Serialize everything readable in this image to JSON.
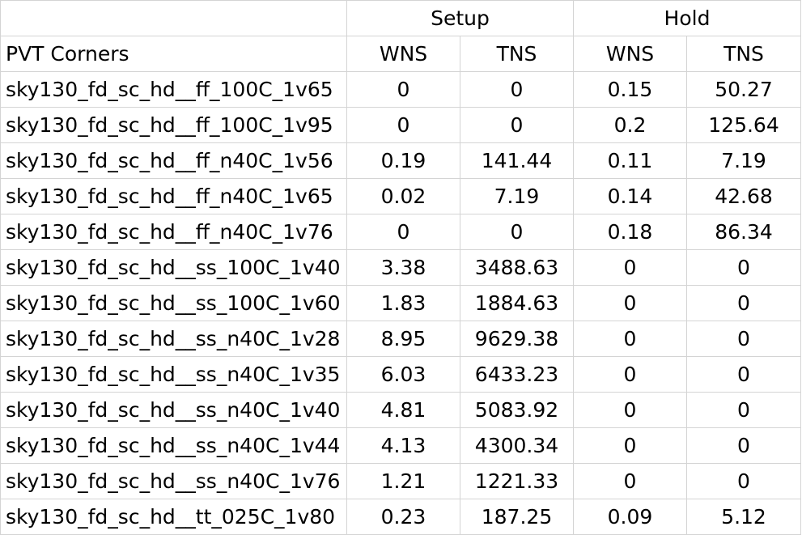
{
  "header": {
    "groups": {
      "setup": "Setup",
      "hold": "Hold"
    },
    "corner_label": "PVT Corners",
    "setup_wns": "WNS",
    "setup_tns": "TNS",
    "hold_wns": "WNS",
    "hold_tns": "TNS"
  },
  "rows": [
    {
      "corner": "sky130_fd_sc_hd__ff_100C_1v65",
      "setup_wns": "0",
      "setup_tns": "0",
      "hold_wns": "0.15",
      "hold_tns": "50.27"
    },
    {
      "corner": "sky130_fd_sc_hd__ff_100C_1v95",
      "setup_wns": "0",
      "setup_tns": "0",
      "hold_wns": "0.2",
      "hold_tns": "125.64"
    },
    {
      "corner": "sky130_fd_sc_hd__ff_n40C_1v56",
      "setup_wns": "0.19",
      "setup_tns": "141.44",
      "hold_wns": "0.11",
      "hold_tns": "7.19"
    },
    {
      "corner": "sky130_fd_sc_hd__ff_n40C_1v65",
      "setup_wns": "0.02",
      "setup_tns": "7.19",
      "hold_wns": "0.14",
      "hold_tns": "42.68"
    },
    {
      "corner": "sky130_fd_sc_hd__ff_n40C_1v76",
      "setup_wns": "0",
      "setup_tns": "0",
      "hold_wns": "0.18",
      "hold_tns": "86.34"
    },
    {
      "corner": "sky130_fd_sc_hd__ss_100C_1v40",
      "setup_wns": "3.38",
      "setup_tns": "3488.63",
      "hold_wns": "0",
      "hold_tns": "0"
    },
    {
      "corner": "sky130_fd_sc_hd__ss_100C_1v60",
      "setup_wns": "1.83",
      "setup_tns": "1884.63",
      "hold_wns": "0",
      "hold_tns": "0"
    },
    {
      "corner": "sky130_fd_sc_hd__ss_n40C_1v28",
      "setup_wns": "8.95",
      "setup_tns": "9629.38",
      "hold_wns": "0",
      "hold_tns": "0"
    },
    {
      "corner": "sky130_fd_sc_hd__ss_n40C_1v35",
      "setup_wns": "6.03",
      "setup_tns": "6433.23",
      "hold_wns": "0",
      "hold_tns": "0"
    },
    {
      "corner": "sky130_fd_sc_hd__ss_n40C_1v40",
      "setup_wns": "4.81",
      "setup_tns": "5083.92",
      "hold_wns": "0",
      "hold_tns": "0"
    },
    {
      "corner": "sky130_fd_sc_hd__ss_n40C_1v44",
      "setup_wns": "4.13",
      "setup_tns": "4300.34",
      "hold_wns": "0",
      "hold_tns": "0"
    },
    {
      "corner": "sky130_fd_sc_hd__ss_n40C_1v76",
      "setup_wns": "1.21",
      "setup_tns": "1221.33",
      "hold_wns": "0",
      "hold_tns": "0"
    },
    {
      "corner": "sky130_fd_sc_hd__tt_025C_1v80",
      "setup_wns": "0.23",
      "setup_tns": "187.25",
      "hold_wns": "0.09",
      "hold_tns": "5.12"
    }
  ]
}
